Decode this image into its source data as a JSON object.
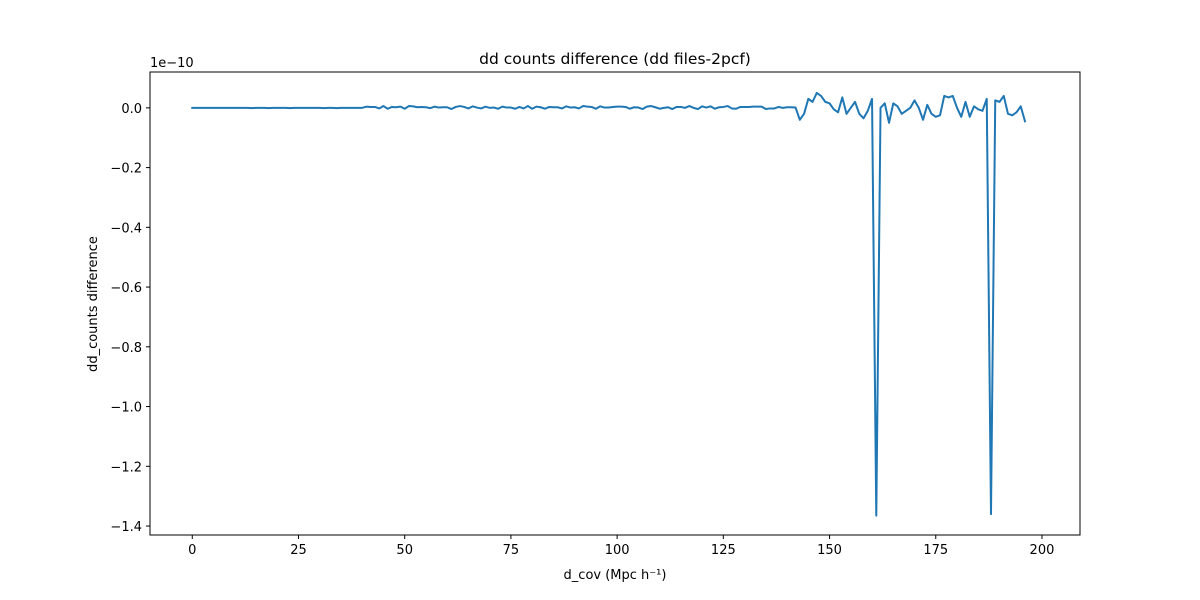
{
  "chart_data": {
    "type": "line",
    "title": "dd counts difference (dd files-2pcf)",
    "xlabel": "d_cov (Mpc h⁻¹)",
    "ylabel": "dd_counts difference",
    "y_offset_label": "1e−10",
    "xlim": [
      -9.95,
      208.95
    ],
    "ylim": [
      -1.43,
      0.12
    ],
    "x_ticks": [
      0,
      25,
      50,
      75,
      100,
      125,
      150,
      175,
      200
    ],
    "x_tick_labels": [
      "0",
      "25",
      "50",
      "75",
      "100",
      "125",
      "150",
      "175",
      "200"
    ],
    "y_ticks": [
      0.0,
      -0.2,
      -0.4,
      -0.6,
      -0.8,
      -1.0,
      -1.2,
      -1.4
    ],
    "y_tick_labels": [
      "0.0",
      "−0.2",
      "−0.4",
      "−0.6",
      "−0.8",
      "−1.0",
      "−1.2",
      "−1.4"
    ],
    "grid": false,
    "line_color": "#1f77b4",
    "series": [
      {
        "x_start": 0,
        "x_step": 1,
        "values": [
          0.0,
          0.0,
          0.0,
          0.0,
          0.0,
          0.0,
          0.0,
          0.0,
          0.0,
          0.0,
          0.0,
          0.0,
          0.0,
          0.0,
          -0.001,
          0.0,
          0.0,
          0.0,
          -0.001,
          0.0,
          0.0,
          0.0,
          0.0,
          -0.001,
          0.0,
          0.0,
          0.0,
          0.0,
          0.0,
          0.0,
          0.0,
          -0.001,
          0.0,
          0.0,
          -0.001,
          0.0,
          0.0,
          0.0,
          0.0,
          0.0,
          0.0,
          0.004,
          0.003,
          0.003,
          -0.002,
          0.006,
          -0.003,
          0.003,
          0.002,
          0.004,
          -0.003,
          0.006,
          0.005,
          0.002,
          0.003,
          0.002,
          -0.001,
          0.004,
          0.001,
          0.002,
          0.002,
          -0.004,
          0.003,
          0.006,
          0.003,
          -0.002,
          0.005,
          0.001,
          -0.002,
          0.004,
          0.0,
          0.001,
          -0.003,
          0.004,
          0.001,
          0.001,
          -0.003,
          0.003,
          -0.002,
          0.006,
          -0.003,
          0.004,
          0.002,
          -0.003,
          0.003,
          0.002,
          0.002,
          -0.002,
          0.005,
          0.001,
          0.002,
          -0.002,
          0.006,
          0.004,
          0.003,
          -0.003,
          0.005,
          0.001,
          0.001,
          0.003,
          0.004,
          0.004,
          0.003,
          -0.003,
          0.002,
          0.001,
          -0.004,
          0.004,
          0.006,
          0.002,
          -0.003,
          0.0,
          0.002,
          -0.004,
          0.003,
          0.003,
          0.0,
          0.006,
          0.0,
          -0.004,
          0.005,
          0.001,
          0.005,
          -0.003,
          0.002,
          0.003,
          0.006,
          -0.002,
          -0.003,
          0.003,
          0.003,
          0.003,
          0.004,
          0.004,
          0.004,
          -0.004,
          -0.002,
          -0.002,
          0.003,
          0.0,
          0.002,
          0.002,
          0.001,
          -0.04,
          -0.02,
          0.03,
          0.02,
          0.05,
          0.04,
          0.02,
          0.015,
          -0.005,
          -0.015,
          0.035,
          -0.02,
          0.0,
          0.02,
          -0.02,
          -0.035,
          -0.01,
          0.03,
          -1.365,
          0.0,
          0.015,
          -0.05,
          0.015,
          0.005,
          -0.02,
          -0.01,
          0.0,
          0.025,
          0.0,
          -0.04,
          0.01,
          -0.02,
          -0.03,
          -0.025,
          0.04,
          0.035,
          0.04,
          0.0,
          -0.03,
          0.02,
          -0.03,
          0.005,
          -0.005,
          -0.01,
          0.03,
          -1.36,
          0.025,
          0.02,
          0.04,
          -0.02,
          -0.025,
          -0.015,
          0.005,
          -0.045
        ]
      }
    ]
  }
}
